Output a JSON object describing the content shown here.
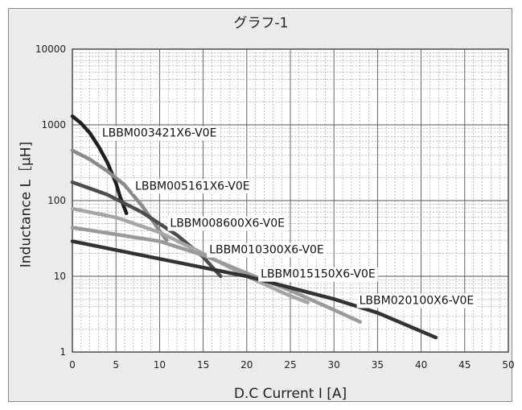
{
  "chart_data": {
    "type": "line",
    "title": "グラフ-1",
    "xlabel": "D.C Current I [A]",
    "ylabel": "Inductance L［μH]",
    "x_ticks": [
      "0",
      "5",
      "10",
      "15",
      "20",
      "25",
      "30",
      "35",
      "40",
      "45",
      "50"
    ],
    "y_ticks": [
      "1",
      "10",
      "100",
      "1000",
      "10000"
    ],
    "xlim": [
      0,
      50
    ],
    "ylim": [
      1,
      10000
    ],
    "y_scale": "log",
    "grid": true,
    "series": [
      {
        "name": "LBBM003421X6-V0E",
        "color": "#1f1f1f",
        "points": [
          [
            0,
            1300
          ],
          [
            1,
            1050
          ],
          [
            2,
            780
          ],
          [
            3,
            520
          ],
          [
            4,
            320
          ],
          [
            5,
            170
          ],
          [
            5.5,
            110
          ],
          [
            6.2,
            68
          ]
        ]
      },
      {
        "name": "LBBM005161X6-V0E",
        "color": "#8a8a8a",
        "points": [
          [
            0,
            460
          ],
          [
            2,
            350
          ],
          [
            4,
            245
          ],
          [
            6,
            160
          ],
          [
            8,
            85
          ],
          [
            10,
            40
          ],
          [
            10.8,
            30
          ]
        ]
      },
      {
        "name": "LBBM008600X6-V0E",
        "color": "#4d4d4d",
        "points": [
          [
            0,
            175
          ],
          [
            4,
            120
          ],
          [
            8,
            70
          ],
          [
            12,
            35
          ],
          [
            15,
            18
          ],
          [
            17,
            10
          ]
        ]
      },
      {
        "name": "LBBM010300X6-V0E",
        "color": "#a6a6a6",
        "points": [
          [
            0,
            78
          ],
          [
            5,
            60
          ],
          [
            10,
            38
          ],
          [
            15,
            20
          ],
          [
            20,
            10
          ],
          [
            25,
            5.5
          ],
          [
            27,
            4.5
          ]
        ]
      },
      {
        "name": "LBBM015150X6-V0E",
        "color": "#9a9a9a",
        "points": [
          [
            0,
            44
          ],
          [
            10,
            29
          ],
          [
            15,
            19
          ],
          [
            20,
            11
          ],
          [
            25,
            6.5
          ],
          [
            30,
            3.6
          ],
          [
            33,
            2.5
          ]
        ]
      },
      {
        "name": "LBBM020100X6-V0E",
        "color": "#333333",
        "points": [
          [
            0,
            29
          ],
          [
            10,
            17
          ],
          [
            20,
            10
          ],
          [
            30,
            5
          ],
          [
            35,
            3.3
          ],
          [
            41.7,
            1.55
          ]
        ]
      }
    ]
  }
}
